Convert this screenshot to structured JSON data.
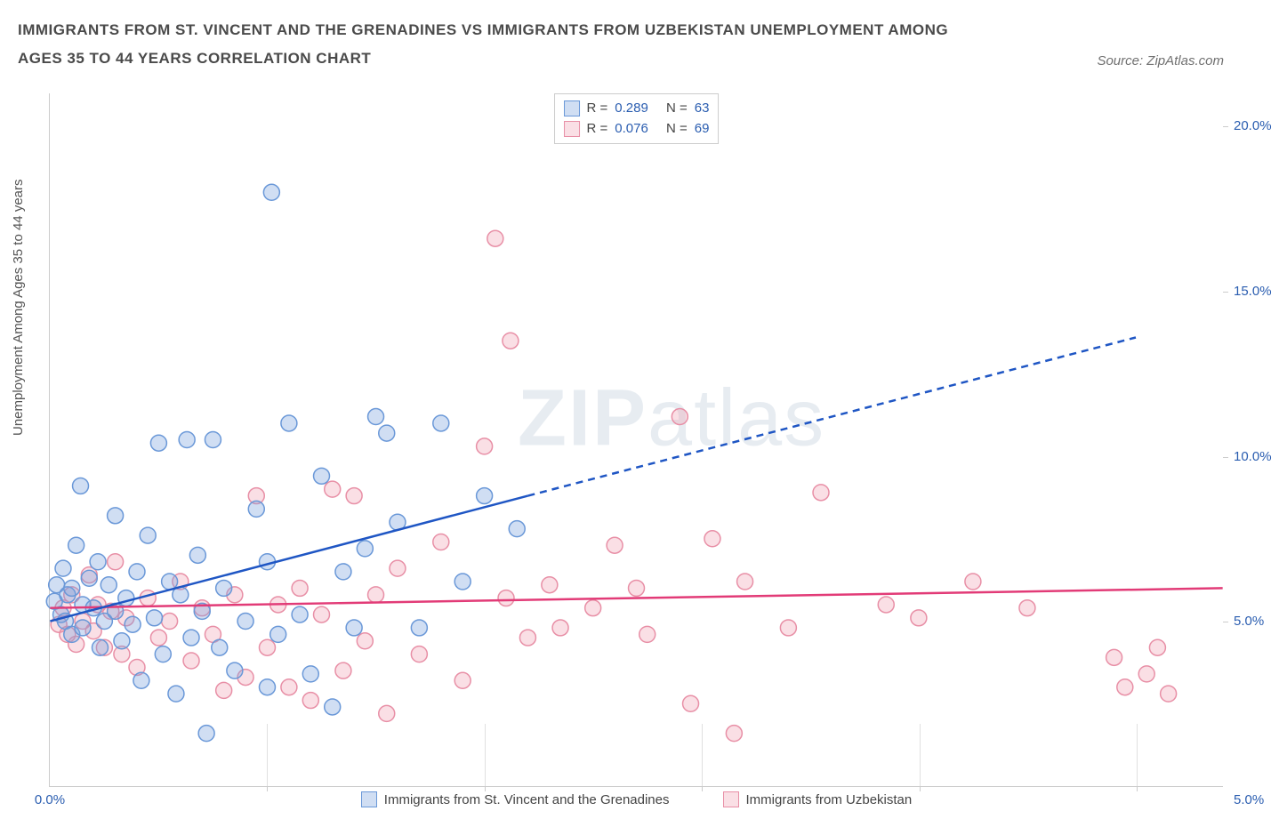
{
  "title": "IMMIGRANTS FROM ST. VINCENT AND THE GRENADINES VS IMMIGRANTS FROM UZBEKISTAN UNEMPLOYMENT AMONG AGES 35 TO 44 YEARS CORRELATION CHART",
  "source": "Source: ZipAtlas.com",
  "ylabel": "Unemployment Among Ages 35 to 44 years",
  "watermark_a": "ZIP",
  "watermark_b": "atlas",
  "chart": {
    "type": "scatter",
    "xlim": [
      0,
      5.4
    ],
    "ylim": [
      0,
      21
    ],
    "xtick_left": {
      "pos": 0,
      "label": "0.0%"
    },
    "xtick_right": {
      "pos": 5.0,
      "label": "5.0%"
    },
    "xticks_inner": [
      1,
      2,
      3,
      4,
      5
    ],
    "yticks": [
      {
        "v": 5,
        "label": "5.0%"
      },
      {
        "v": 10,
        "label": "10.0%"
      },
      {
        "v": 15,
        "label": "15.0%"
      },
      {
        "v": 20,
        "label": "20.0%"
      }
    ],
    "marker_radius": 9,
    "marker_stroke_width": 1.5,
    "background_color": "#ffffff",
    "axis_color": "#cccccc",
    "tick_label_color": "#2a5db0"
  },
  "series": {
    "svg": {
      "label": "Immigrants from St. Vincent and the Grenadines",
      "color_fill": "rgba(120,160,220,0.35)",
      "color_stroke": "#6a98d8",
      "trend_color": "#1f56c4",
      "trend_width": 2.5,
      "trend_solid": {
        "x1": 0,
        "y1": 5.0,
        "x2": 2.2,
        "y2": 8.8
      },
      "trend_dash": {
        "x1": 2.2,
        "y1": 8.8,
        "x2": 5.0,
        "y2": 13.6
      },
      "R": "0.289",
      "N": "63",
      "points": [
        [
          0.02,
          5.6
        ],
        [
          0.03,
          6.1
        ],
        [
          0.05,
          5.2
        ],
        [
          0.06,
          6.6
        ],
        [
          0.07,
          5.0
        ],
        [
          0.08,
          5.8
        ],
        [
          0.1,
          6.0
        ],
        [
          0.1,
          4.6
        ],
        [
          0.12,
          7.3
        ],
        [
          0.14,
          9.1
        ],
        [
          0.15,
          5.5
        ],
        [
          0.15,
          4.8
        ],
        [
          0.18,
          6.3
        ],
        [
          0.2,
          5.4
        ],
        [
          0.22,
          6.8
        ],
        [
          0.23,
          4.2
        ],
        [
          0.25,
          5.0
        ],
        [
          0.27,
          6.1
        ],
        [
          0.3,
          5.3
        ],
        [
          0.3,
          8.2
        ],
        [
          0.33,
          4.4
        ],
        [
          0.35,
          5.7
        ],
        [
          0.38,
          4.9
        ],
        [
          0.4,
          6.5
        ],
        [
          0.42,
          3.2
        ],
        [
          0.45,
          7.6
        ],
        [
          0.48,
          5.1
        ],
        [
          0.5,
          10.4
        ],
        [
          0.52,
          4.0
        ],
        [
          0.55,
          6.2
        ],
        [
          0.58,
          2.8
        ],
        [
          0.6,
          5.8
        ],
        [
          0.63,
          10.5
        ],
        [
          0.65,
          4.5
        ],
        [
          0.68,
          7.0
        ],
        [
          0.7,
          5.3
        ],
        [
          0.72,
          1.6
        ],
        [
          0.75,
          10.5
        ],
        [
          0.78,
          4.2
        ],
        [
          0.8,
          6.0
        ],
        [
          0.85,
          3.5
        ],
        [
          0.9,
          5.0
        ],
        [
          0.95,
          8.4
        ],
        [
          1.0,
          6.8
        ],
        [
          1.0,
          3.0
        ],
        [
          1.02,
          18.0
        ],
        [
          1.05,
          4.6
        ],
        [
          1.1,
          11.0
        ],
        [
          1.15,
          5.2
        ],
        [
          1.2,
          3.4
        ],
        [
          1.25,
          9.4
        ],
        [
          1.3,
          2.4
        ],
        [
          1.35,
          6.5
        ],
        [
          1.4,
          4.8
        ],
        [
          1.45,
          7.2
        ],
        [
          1.5,
          11.2
        ],
        [
          1.55,
          10.7
        ],
        [
          1.6,
          8.0
        ],
        [
          1.7,
          4.8
        ],
        [
          1.8,
          11.0
        ],
        [
          1.9,
          6.2
        ],
        [
          2.0,
          8.8
        ],
        [
          2.15,
          7.8
        ]
      ]
    },
    "uzb": {
      "label": "Immigrants from Uzbekistan",
      "color_fill": "rgba(240,150,170,0.30)",
      "color_stroke": "#e88fa6",
      "trend_color": "#e23b77",
      "trend_width": 2.5,
      "trend_solid": {
        "x1": 0,
        "y1": 5.4,
        "x2": 5.4,
        "y2": 6.0
      },
      "R": "0.076",
      "N": "69",
      "points": [
        [
          0.04,
          4.9
        ],
        [
          0.06,
          5.4
        ],
        [
          0.08,
          4.6
        ],
        [
          0.1,
          5.8
        ],
        [
          0.12,
          4.3
        ],
        [
          0.15,
          5.0
        ],
        [
          0.18,
          6.4
        ],
        [
          0.2,
          4.7
        ],
        [
          0.22,
          5.5
        ],
        [
          0.25,
          4.2
        ],
        [
          0.28,
          5.3
        ],
        [
          0.3,
          6.8
        ],
        [
          0.33,
          4.0
        ],
        [
          0.35,
          5.1
        ],
        [
          0.4,
          3.6
        ],
        [
          0.45,
          5.7
        ],
        [
          0.5,
          4.5
        ],
        [
          0.55,
          5.0
        ],
        [
          0.6,
          6.2
        ],
        [
          0.65,
          3.8
        ],
        [
          0.7,
          5.4
        ],
        [
          0.75,
          4.6
        ],
        [
          0.8,
          2.9
        ],
        [
          0.85,
          5.8
        ],
        [
          0.9,
          3.3
        ],
        [
          0.95,
          8.8
        ],
        [
          1.0,
          4.2
        ],
        [
          1.05,
          5.5
        ],
        [
          1.1,
          3.0
        ],
        [
          1.15,
          6.0
        ],
        [
          1.2,
          2.6
        ],
        [
          1.25,
          5.2
        ],
        [
          1.3,
          9.0
        ],
        [
          1.35,
          3.5
        ],
        [
          1.4,
          8.8
        ],
        [
          1.45,
          4.4
        ],
        [
          1.5,
          5.8
        ],
        [
          1.55,
          2.2
        ],
        [
          1.6,
          6.6
        ],
        [
          1.7,
          4.0
        ],
        [
          1.8,
          7.4
        ],
        [
          1.9,
          3.2
        ],
        [
          2.0,
          10.3
        ],
        [
          2.05,
          16.6
        ],
        [
          2.1,
          5.7
        ],
        [
          2.12,
          13.5
        ],
        [
          2.2,
          4.5
        ],
        [
          2.3,
          6.1
        ],
        [
          2.35,
          4.8
        ],
        [
          2.5,
          5.4
        ],
        [
          2.6,
          7.3
        ],
        [
          2.7,
          6.0
        ],
        [
          2.75,
          4.6
        ],
        [
          2.9,
          11.2
        ],
        [
          2.95,
          2.5
        ],
        [
          3.05,
          7.5
        ],
        [
          3.15,
          1.6
        ],
        [
          3.2,
          6.2
        ],
        [
          3.4,
          4.8
        ],
        [
          3.55,
          8.9
        ],
        [
          3.85,
          5.5
        ],
        [
          4.0,
          5.1
        ],
        [
          4.25,
          6.2
        ],
        [
          4.5,
          5.4
        ],
        [
          4.9,
          3.9
        ],
        [
          4.95,
          3.0
        ],
        [
          5.05,
          3.4
        ],
        [
          5.1,
          4.2
        ],
        [
          5.15,
          2.8
        ]
      ]
    }
  },
  "legend": {
    "r_label": "R =",
    "n_label": "N ="
  }
}
